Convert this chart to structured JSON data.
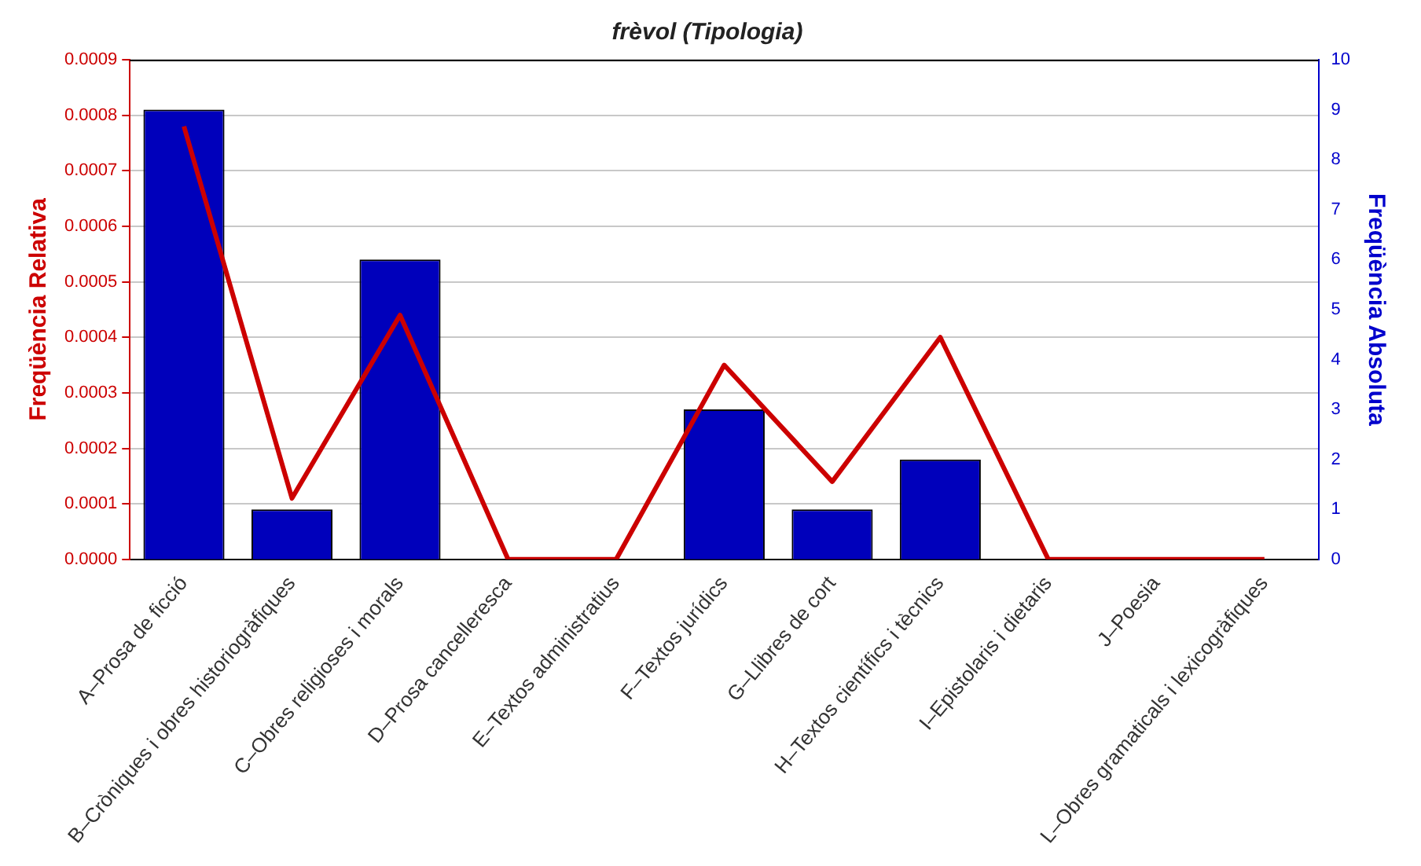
{
  "chart_data": {
    "type": "bar",
    "title": "frèvol (Tipologia)",
    "ylabel": "Freqüència Relativa",
    "y2label": "Freqüència Absoluta",
    "categories": [
      "A–Prosa de ficció",
      "B–Cròniques i obres historiogràfiques",
      "C–Obres religioses i morals",
      "D–Prosa cancelleresca",
      "E–Textos administratius",
      "F–Textos jurídics",
      "G–Llibres de cort",
      "H–Textos científics i tècnics",
      "I–Epistolaris i dietaris",
      "J–Poesia",
      "L–Obres gramaticals i lexicogràfiques"
    ],
    "series": [
      {
        "axis": "y2",
        "color": "#0000bb",
        "values": [
          9,
          1,
          6,
          0,
          0,
          3,
          1,
          2,
          0,
          0,
          0
        ]
      },
      {
        "type": "line",
        "axis": "y",
        "color": "#cc0000",
        "values": [
          0.00078,
          0.00011,
          0.00044,
          0,
          0,
          0.00035,
          0.00014,
          0.0004,
          0,
          0,
          0
        ]
      }
    ],
    "ylim": [
      0,
      0.0009
    ],
    "yticks": [
      {
        "value": 0,
        "label": "0.0000"
      },
      {
        "value": 0.0001,
        "label": "0.0001"
      },
      {
        "value": 0.0002,
        "label": "0.0002"
      },
      {
        "value": 0.0003,
        "label": "0.0003"
      },
      {
        "value": 0.0004,
        "label": "0.0004"
      },
      {
        "value": 0.0005,
        "label": "0.0005"
      },
      {
        "value": 0.0006,
        "label": "0.0006"
      },
      {
        "value": 0.0007,
        "label": "0.0007"
      },
      {
        "value": 0.0008,
        "label": "0.0008"
      },
      {
        "value": 0.0009,
        "label": "0.0009"
      }
    ],
    "y2lim": [
      0,
      10
    ],
    "y2ticks": [
      0,
      1,
      2,
      3,
      4,
      5,
      6,
      7,
      8,
      9,
      10
    ],
    "grid": "y",
    "legend": false,
    "marker": "none",
    "line_style": "solid"
  }
}
